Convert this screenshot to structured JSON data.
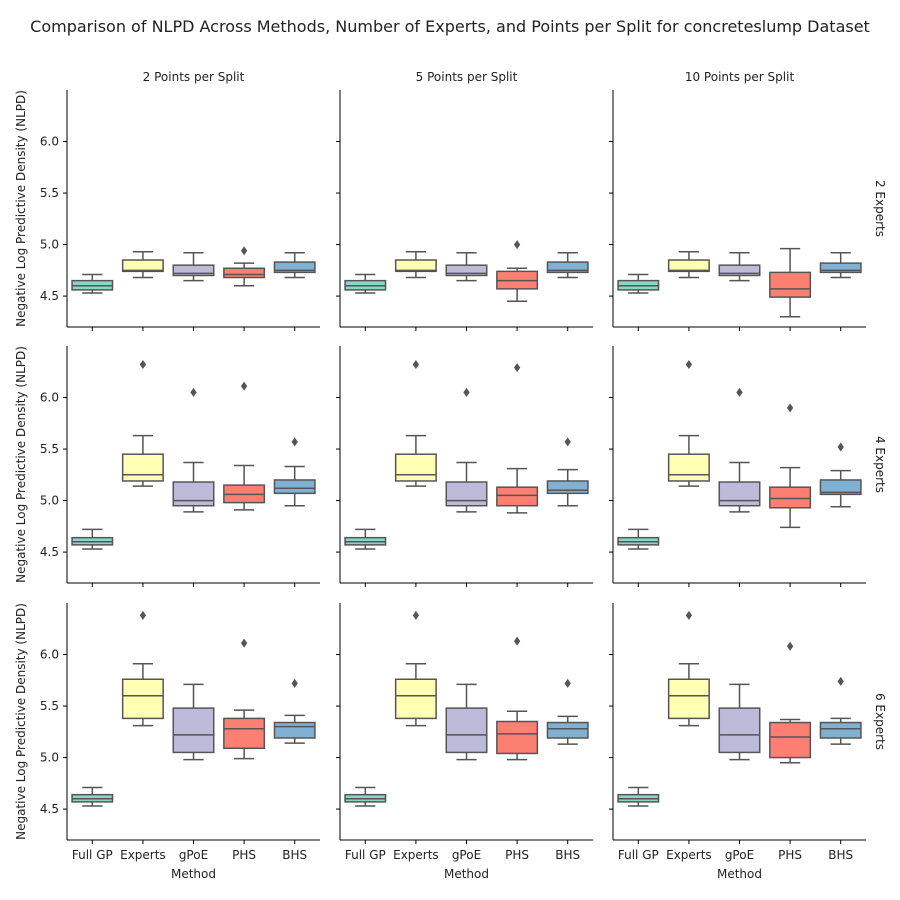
{
  "chart_data": {
    "type": "box",
    "title": "Comparison of NLPD Across Methods, Number of Experts, and Points per Split for concreteslump Dataset",
    "xlabel": "Method",
    "ylabel": "Negative Log Predictive Density (NLPD)",
    "ylim": [
      4.2,
      6.5
    ],
    "yticks": [
      4.5,
      5.0,
      5.5,
      6.0
    ],
    "ytick_labels": [
      "4.5",
      "5.0",
      "5.5",
      "6.0"
    ],
    "categories": [
      "Full GP",
      "Experts",
      "gPoE",
      "PHS",
      "BHS"
    ],
    "category_colors": [
      "#8dd3c7",
      "#ffffb3",
      "#bebada",
      "#fb8072",
      "#80b1d3"
    ],
    "column_labels": [
      "2 Points per Split",
      "5 Points per Split",
      "10 Points per Split"
    ],
    "row_labels": [
      "2 Experts",
      "4 Experts",
      "6 Experts"
    ],
    "panels": [
      {
        "row": 0,
        "col": 0,
        "boxes": [
          {
            "min": 4.53,
            "q1": 4.56,
            "median": 4.6,
            "q3": 4.65,
            "max": 4.71,
            "outliers": []
          },
          {
            "min": 4.68,
            "q1": 4.74,
            "median": 4.75,
            "q3": 4.85,
            "max": 4.93,
            "outliers": []
          },
          {
            "min": 4.65,
            "q1": 4.7,
            "median": 4.72,
            "q3": 4.8,
            "max": 4.92,
            "outliers": []
          },
          {
            "min": 4.6,
            "q1": 4.68,
            "median": 4.71,
            "q3": 4.77,
            "max": 4.82,
            "outliers": [
              4.94
            ]
          },
          {
            "min": 4.68,
            "q1": 4.73,
            "median": 4.75,
            "q3": 4.83,
            "max": 4.92,
            "outliers": []
          }
        ]
      },
      {
        "row": 0,
        "col": 1,
        "boxes": [
          {
            "min": 4.53,
            "q1": 4.56,
            "median": 4.6,
            "q3": 4.65,
            "max": 4.71,
            "outliers": []
          },
          {
            "min": 4.68,
            "q1": 4.74,
            "median": 4.75,
            "q3": 4.85,
            "max": 4.93,
            "outliers": []
          },
          {
            "min": 4.65,
            "q1": 4.7,
            "median": 4.72,
            "q3": 4.8,
            "max": 4.92,
            "outliers": []
          },
          {
            "min": 4.45,
            "q1": 4.57,
            "median": 4.65,
            "q3": 4.74,
            "max": 4.77,
            "outliers": [
              5.0
            ]
          },
          {
            "min": 4.68,
            "q1": 4.73,
            "median": 4.75,
            "q3": 4.83,
            "max": 4.92,
            "outliers": []
          }
        ]
      },
      {
        "row": 0,
        "col": 2,
        "boxes": [
          {
            "min": 4.53,
            "q1": 4.56,
            "median": 4.6,
            "q3": 4.65,
            "max": 4.71,
            "outliers": []
          },
          {
            "min": 4.68,
            "q1": 4.74,
            "median": 4.75,
            "q3": 4.85,
            "max": 4.93,
            "outliers": []
          },
          {
            "min": 4.65,
            "q1": 4.7,
            "median": 4.72,
            "q3": 4.8,
            "max": 4.92,
            "outliers": []
          },
          {
            "min": 4.3,
            "q1": 4.49,
            "median": 4.57,
            "q3": 4.73,
            "max": 4.96,
            "outliers": []
          },
          {
            "min": 4.68,
            "q1": 4.73,
            "median": 4.75,
            "q3": 4.82,
            "max": 4.92,
            "outliers": []
          }
        ]
      },
      {
        "row": 1,
        "col": 0,
        "boxes": [
          {
            "min": 4.53,
            "q1": 4.57,
            "median": 4.6,
            "q3": 4.64,
            "max": 4.72,
            "outliers": []
          },
          {
            "min": 5.14,
            "q1": 5.19,
            "median": 5.25,
            "q3": 5.45,
            "max": 5.63,
            "outliers": [
              6.32
            ]
          },
          {
            "min": 4.89,
            "q1": 4.95,
            "median": 5.0,
            "q3": 5.18,
            "max": 5.37,
            "outliers": [
              6.05
            ]
          },
          {
            "min": 4.91,
            "q1": 4.98,
            "median": 5.06,
            "q3": 5.15,
            "max": 5.34,
            "outliers": [
              6.11
            ]
          },
          {
            "min": 4.95,
            "q1": 5.07,
            "median": 5.12,
            "q3": 5.2,
            "max": 5.33,
            "outliers": [
              5.57
            ]
          }
        ]
      },
      {
        "row": 1,
        "col": 1,
        "boxes": [
          {
            "min": 4.53,
            "q1": 4.57,
            "median": 4.6,
            "q3": 4.64,
            "max": 4.72,
            "outliers": []
          },
          {
            "min": 5.14,
            "q1": 5.19,
            "median": 5.25,
            "q3": 5.45,
            "max": 5.63,
            "outliers": [
              6.32
            ]
          },
          {
            "min": 4.89,
            "q1": 4.95,
            "median": 5.0,
            "q3": 5.18,
            "max": 5.37,
            "outliers": [
              6.05
            ]
          },
          {
            "min": 4.88,
            "q1": 4.95,
            "median": 5.05,
            "q3": 5.13,
            "max": 5.31,
            "outliers": [
              6.29
            ]
          },
          {
            "min": 4.95,
            "q1": 5.07,
            "median": 5.1,
            "q3": 5.19,
            "max": 5.3,
            "outliers": [
              5.57
            ]
          }
        ]
      },
      {
        "row": 1,
        "col": 2,
        "boxes": [
          {
            "min": 4.53,
            "q1": 4.57,
            "median": 4.6,
            "q3": 4.64,
            "max": 4.72,
            "outliers": []
          },
          {
            "min": 5.14,
            "q1": 5.19,
            "median": 5.25,
            "q3": 5.45,
            "max": 5.63,
            "outliers": [
              6.32
            ]
          },
          {
            "min": 4.89,
            "q1": 4.95,
            "median": 5.0,
            "q3": 5.18,
            "max": 5.37,
            "outliers": [
              6.05
            ]
          },
          {
            "min": 4.74,
            "q1": 4.93,
            "median": 5.02,
            "q3": 5.13,
            "max": 5.32,
            "outliers": [
              5.9
            ]
          },
          {
            "min": 4.94,
            "q1": 5.06,
            "median": 5.08,
            "q3": 5.2,
            "max": 5.29,
            "outliers": [
              5.52
            ]
          }
        ]
      },
      {
        "row": 2,
        "col": 0,
        "boxes": [
          {
            "min": 4.53,
            "q1": 4.57,
            "median": 4.6,
            "q3": 4.64,
            "max": 4.71,
            "outliers": []
          },
          {
            "min": 5.31,
            "q1": 5.38,
            "median": 5.6,
            "q3": 5.76,
            "max": 5.91,
            "outliers": [
              6.38
            ]
          },
          {
            "min": 4.98,
            "q1": 5.05,
            "median": 5.22,
            "q3": 5.48,
            "max": 5.71,
            "outliers": []
          },
          {
            "min": 4.99,
            "q1": 5.09,
            "median": 5.28,
            "q3": 5.38,
            "max": 5.46,
            "outliers": [
              6.11
            ]
          },
          {
            "min": 5.14,
            "q1": 5.19,
            "median": 5.3,
            "q3": 5.34,
            "max": 5.41,
            "outliers": [
              5.72
            ]
          }
        ]
      },
      {
        "row": 2,
        "col": 1,
        "boxes": [
          {
            "min": 4.53,
            "q1": 4.57,
            "median": 4.6,
            "q3": 4.64,
            "max": 4.71,
            "outliers": []
          },
          {
            "min": 5.31,
            "q1": 5.38,
            "median": 5.6,
            "q3": 5.76,
            "max": 5.91,
            "outliers": [
              6.38
            ]
          },
          {
            "min": 4.98,
            "q1": 5.05,
            "median": 5.22,
            "q3": 5.48,
            "max": 5.71,
            "outliers": []
          },
          {
            "min": 4.98,
            "q1": 5.04,
            "median": 5.23,
            "q3": 5.35,
            "max": 5.45,
            "outliers": [
              6.13
            ]
          },
          {
            "min": 5.13,
            "q1": 5.19,
            "median": 5.28,
            "q3": 5.34,
            "max": 5.4,
            "outliers": [
              5.72
            ]
          }
        ]
      },
      {
        "row": 2,
        "col": 2,
        "boxes": [
          {
            "min": 4.53,
            "q1": 4.57,
            "median": 4.6,
            "q3": 4.64,
            "max": 4.71,
            "outliers": []
          },
          {
            "min": 5.31,
            "q1": 5.38,
            "median": 5.6,
            "q3": 5.76,
            "max": 5.91,
            "outliers": [
              6.38
            ]
          },
          {
            "min": 4.98,
            "q1": 5.05,
            "median": 5.22,
            "q3": 5.48,
            "max": 5.71,
            "outliers": []
          },
          {
            "min": 4.95,
            "q1": 5.0,
            "median": 5.2,
            "q3": 5.34,
            "max": 5.37,
            "outliers": [
              6.08
            ]
          },
          {
            "min": 5.13,
            "q1": 5.19,
            "median": 5.28,
            "q3": 5.34,
            "max": 5.38,
            "outliers": [
              5.74
            ]
          }
        ]
      }
    ],
    "grid": false,
    "legend": "none"
  }
}
